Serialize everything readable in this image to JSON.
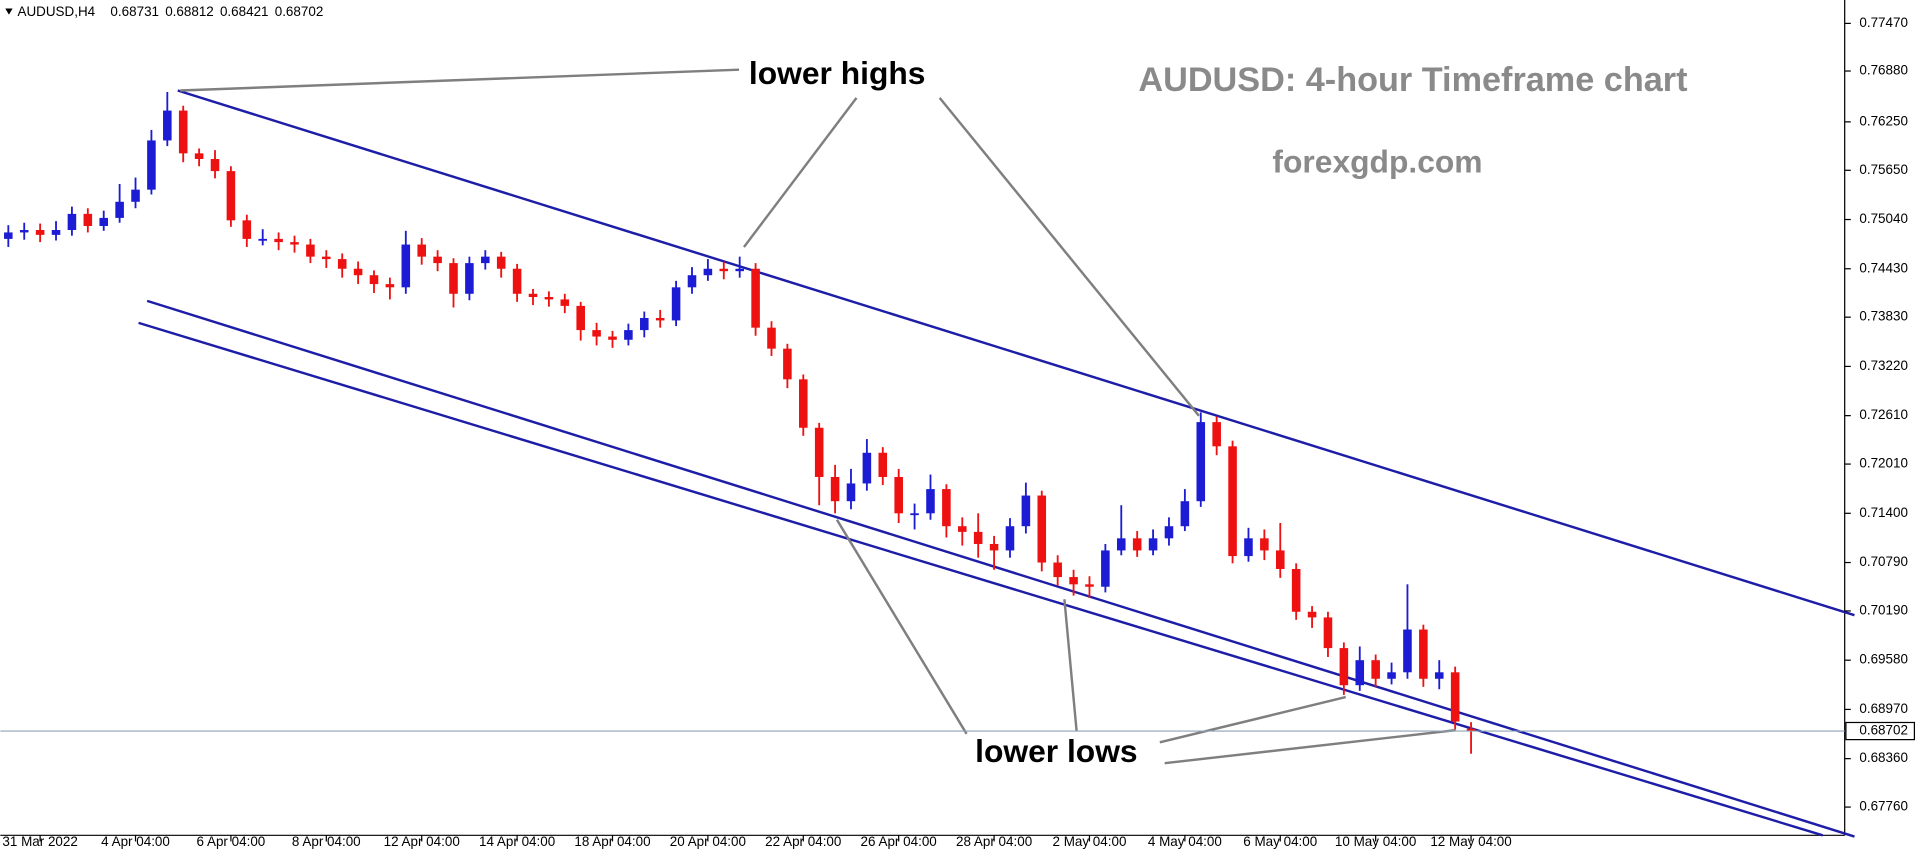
{
  "chart_data": {
    "type": "candlestick",
    "symbol": "AUDUSD,H4",
    "title": "AUDUSD: 4-hour Timeframe chart",
    "subtitle": "forexgdp.com",
    "annotations": [
      "lower highs",
      "lower lows"
    ],
    "up_color": "#1c1cd4",
    "down_color": "#ee1111",
    "channel_color": "#1d1da8",
    "xlim": [
      -0.5,
      115.5
    ],
    "xticks": [
      {
        "value": 2,
        "label": "31 Mar 2022"
      },
      {
        "value": 8,
        "label": "4 Apr 04:00"
      },
      {
        "value": 14,
        "label": "6 Apr 04:00"
      },
      {
        "value": 20,
        "label": "8 Apr 04:00"
      },
      {
        "value": 26,
        "label": "12 Apr 04:00"
      },
      {
        "value": 32,
        "label": "14 Apr 04:00"
      },
      {
        "value": 38,
        "label": "18 Apr 04:00"
      },
      {
        "value": 44,
        "label": "20 Apr 04:00"
      },
      {
        "value": 50,
        "label": "22 Apr 04:00"
      },
      {
        "value": 56,
        "label": "26 Apr 04:00"
      },
      {
        "value": 62,
        "label": "28 Apr 04:00"
      },
      {
        "value": 68,
        "label": "2 May 04:00"
      },
      {
        "value": 74,
        "label": "4 May 04:00"
      },
      {
        "value": 80,
        "label": "6 May 04:00"
      },
      {
        "value": 86,
        "label": "10 May 04:00"
      },
      {
        "value": 92,
        "label": "12 May 04:00"
      }
    ],
    "ylim": [
      0.6741,
      0.7776
    ],
    "yticks": [
      {
        "value": 0.7747,
        "label": "0.77470"
      },
      {
        "value": 0.7688,
        "label": "0.76880"
      },
      {
        "value": 0.7625,
        "label": "0.76250"
      },
      {
        "value": 0.7565,
        "label": "0.75650"
      },
      {
        "value": 0.7504,
        "label": "0.75040"
      },
      {
        "value": 0.7443,
        "label": "0.74430"
      },
      {
        "value": 0.7383,
        "label": "0.73830"
      },
      {
        "value": 0.7322,
        "label": "0.73220"
      },
      {
        "value": 0.7261,
        "label": "0.72610"
      },
      {
        "value": 0.7201,
        "label": "0.72010"
      },
      {
        "value": 0.714,
        "label": "0.71400"
      },
      {
        "value": 0.7079,
        "label": "0.70790"
      },
      {
        "value": 0.7019,
        "label": "0.70190"
      },
      {
        "value": 0.6958,
        "label": "0.69580"
      },
      {
        "value": 0.6897,
        "label": "0.68970"
      },
      {
        "value": 0.6836,
        "label": "0.68360"
      },
      {
        "value": 0.6776,
        "label": "0.67760"
      }
    ],
    "open": [
      0.748,
      0.7488,
      0.7491,
      0.7485,
      0.7491,
      0.7511,
      0.7496,
      0.7506,
      0.7526,
      0.7541,
      0.7602,
      0.7639,
      0.7586,
      0.7579,
      0.7564,
      0.7503,
      0.748,
      0.748,
      0.7476,
      0.7473,
      0.7458,
      0.7455,
      0.7443,
      0.7435,
      0.7424,
      0.742,
      0.7473,
      0.7458,
      0.745,
      0.7412,
      0.745,
      0.7458,
      0.7443,
      0.7412,
      0.7408,
      0.7405,
      0.7397,
      0.7367,
      0.7359,
      0.7355,
      0.7367,
      0.7382,
      0.7379,
      0.742,
      0.7435,
      0.7443,
      0.744,
      0.7443,
      0.737,
      0.7344,
      0.7306,
      0.7246,
      0.7185,
      0.7155,
      0.7177,
      0.7215,
      0.7185,
      0.714,
      0.714,
      0.717,
      0.7124,
      0.7117,
      0.7102,
      0.7094,
      0.7124,
      0.7162,
      0.7079,
      0.7061,
      0.7052,
      0.7049,
      0.7094,
      0.7109,
      0.7094,
      0.7109,
      0.7124,
      0.7155,
      0.7253,
      0.7223,
      0.7087,
      0.7109,
      0.7094,
      0.7071,
      0.7018,
      0.7011,
      0.6973,
      0.6927,
      0.6958,
      0.6935,
      0.6943,
      0.6996,
      0.6935,
      0.6943,
      0.68731
    ],
    "high": [
      0.7497,
      0.75,
      0.7499,
      0.7502,
      0.752,
      0.7518,
      0.7515,
      0.7548,
      0.7556,
      0.7615,
      0.7662,
      0.7645,
      0.7592,
      0.759,
      0.757,
      0.751,
      0.7492,
      0.7488,
      0.7484,
      0.748,
      0.7466,
      0.7462,
      0.7452,
      0.7441,
      0.7432,
      0.749,
      0.7481,
      0.7466,
      0.7456,
      0.7458,
      0.7466,
      0.7464,
      0.7449,
      0.7418,
      0.7415,
      0.7412,
      0.7402,
      0.7376,
      0.7366,
      0.7375,
      0.739,
      0.7392,
      0.7428,
      0.7445,
      0.7455,
      0.7452,
      0.7458,
      0.745,
      0.7378,
      0.735,
      0.7312,
      0.7252,
      0.72,
      0.7195,
      0.7232,
      0.7222,
      0.7195,
      0.7152,
      0.7188,
      0.7176,
      0.7135,
      0.714,
      0.7112,
      0.7134,
      0.7178,
      0.7168,
      0.7088,
      0.707,
      0.7062,
      0.7102,
      0.715,
      0.7118,
      0.712,
      0.7135,
      0.717,
      0.7265,
      0.726,
      0.723,
      0.7122,
      0.712,
      0.7128,
      0.7078,
      0.7025,
      0.7018,
      0.698,
      0.6975,
      0.6965,
      0.6955,
      0.7052,
      0.7002,
      0.6958,
      0.695,
      0.68812
    ],
    "low": [
      0.747,
      0.7479,
      0.7476,
      0.7478,
      0.7484,
      0.7488,
      0.749,
      0.75,
      0.7518,
      0.7535,
      0.7595,
      0.7575,
      0.757,
      0.7555,
      0.7495,
      0.747,
      0.7472,
      0.7466,
      0.7463,
      0.745,
      0.7444,
      0.7432,
      0.7424,
      0.7413,
      0.7405,
      0.7412,
      0.7448,
      0.744,
      0.7395,
      0.7404,
      0.7442,
      0.7432,
      0.7402,
      0.7398,
      0.7396,
      0.7388,
      0.7354,
      0.7348,
      0.7345,
      0.7348,
      0.7358,
      0.737,
      0.7372,
      0.7412,
      0.7428,
      0.743,
      0.7432,
      0.736,
      0.7335,
      0.7295,
      0.7236,
      0.715,
      0.714,
      0.7145,
      0.7168,
      0.7175,
      0.7128,
      0.712,
      0.7132,
      0.711,
      0.71,
      0.7085,
      0.707,
      0.7085,
      0.7115,
      0.7068,
      0.705,
      0.7038,
      0.7035,
      0.7042,
      0.7088,
      0.7086,
      0.7088,
      0.71,
      0.7118,
      0.7148,
      0.7212,
      0.7078,
      0.708,
      0.7082,
      0.706,
      0.7008,
      0.6998,
      0.6962,
      0.6915,
      0.692,
      0.6925,
      0.6928,
      0.6935,
      0.6925,
      0.6922,
      0.6872,
      0.68421
    ],
    "close": [
      0.7488,
      0.7491,
      0.7485,
      0.7491,
      0.7511,
      0.7496,
      0.7506,
      0.7526,
      0.7541,
      0.7602,
      0.7639,
      0.7586,
      0.7579,
      0.7564,
      0.7503,
      0.748,
      0.748,
      0.7476,
      0.7473,
      0.7458,
      0.7455,
      0.7443,
      0.7435,
      0.7424,
      0.742,
      0.7473,
      0.7458,
      0.745,
      0.7412,
      0.745,
      0.7458,
      0.7443,
      0.7412,
      0.7408,
      0.7405,
      0.7397,
      0.7367,
      0.7359,
      0.7355,
      0.7367,
      0.7382,
      0.7379,
      0.742,
      0.7435,
      0.7443,
      0.744,
      0.7443,
      0.737,
      0.7344,
      0.7306,
      0.7246,
      0.7185,
      0.7155,
      0.7177,
      0.7215,
      0.7185,
      0.714,
      0.714,
      0.717,
      0.7124,
      0.7117,
      0.7102,
      0.7094,
      0.7124,
      0.7162,
      0.7079,
      0.7061,
      0.7052,
      0.7049,
      0.7094,
      0.7109,
      0.7094,
      0.7109,
      0.7124,
      0.7155,
      0.7253,
      0.7223,
      0.7087,
      0.7109,
      0.7094,
      0.7071,
      0.7018,
      0.7011,
      0.6973,
      0.6927,
      0.6958,
      0.6935,
      0.6943,
      0.6996,
      0.6935,
      0.6943,
      0.6882,
      0.68702
    ]
  }
}
